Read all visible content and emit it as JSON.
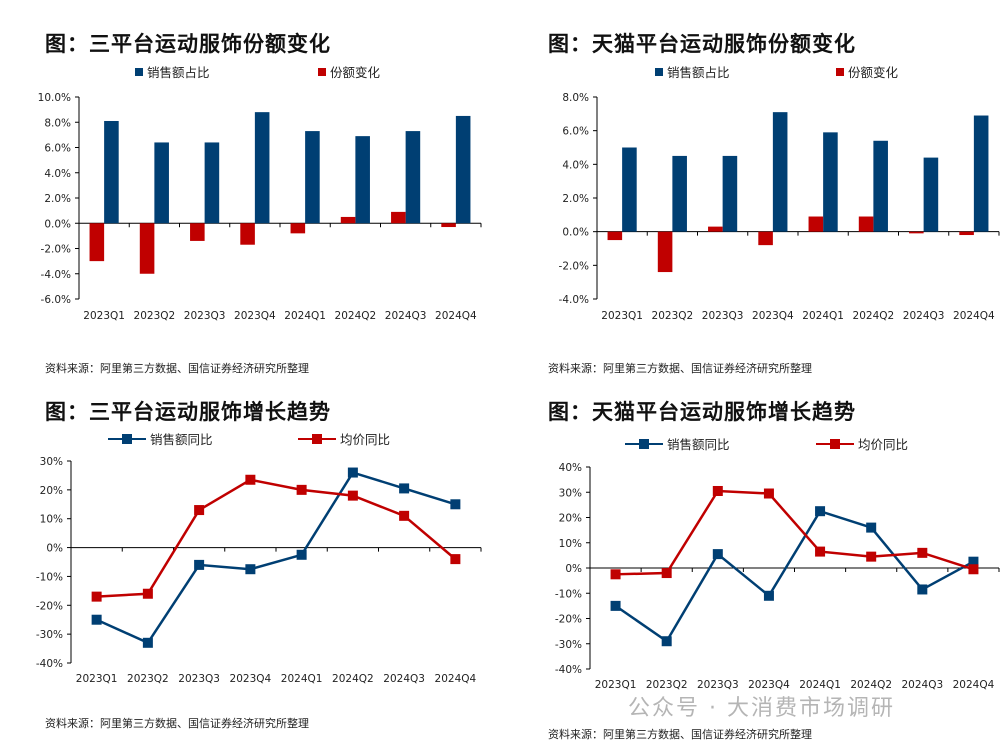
{
  "watermark": "公众号 · 大消费市场调研",
  "colors": {
    "blue": "#003f73",
    "red": "#c00000"
  },
  "chart_data": [
    {
      "type": "bar",
      "title": "图：三平台运动服饰份额变化",
      "categories": [
        "2023Q1",
        "2023Q2",
        "2023Q3",
        "2023Q4",
        "2024Q1",
        "2024Q2",
        "2024Q3",
        "2024Q4"
      ],
      "series": [
        {
          "name": "销售额占比",
          "color": "#003f73",
          "values": [
            8.1,
            6.4,
            6.4,
            8.8,
            7.3,
            6.9,
            7.3,
            8.5
          ]
        },
        {
          "name": "份额变化",
          "color": "#c00000",
          "values": [
            -3.0,
            -4.0,
            -1.4,
            -1.7,
            -0.8,
            0.5,
            0.9,
            -0.3
          ]
        }
      ],
      "ylim": [
        -6,
        10
      ],
      "yticks": [
        "10.0%",
        "8.0%",
        "6.0%",
        "4.0%",
        "2.0%",
        "0.0%",
        "-2.0%",
        "-4.0%",
        "-6.0%"
      ],
      "source": "资料来源：阿里第三方数据、国信证券经济研究所整理"
    },
    {
      "type": "bar",
      "title": "图：天猫平台运动服饰份额变化",
      "categories": [
        "2023Q1",
        "2023Q2",
        "2023Q3",
        "2023Q4",
        "2024Q1",
        "2024Q2",
        "2024Q3",
        "2024Q4"
      ],
      "series": [
        {
          "name": "销售额占比",
          "color": "#003f73",
          "values": [
            5.0,
            4.5,
            4.5,
            7.1,
            5.9,
            5.4,
            4.4,
            6.9
          ]
        },
        {
          "name": "份额变化",
          "color": "#c00000",
          "values": [
            -0.5,
            -2.4,
            0.3,
            -0.8,
            0.9,
            0.9,
            -0.1,
            -0.2
          ]
        }
      ],
      "ylim": [
        -4,
        8
      ],
      "yticks": [
        "8.0%",
        "6.0%",
        "4.0%",
        "2.0%",
        "0.0%",
        "-2.0%",
        "-4.0%"
      ],
      "source": "资料来源：阿里第三方数据、国信证券经济研究所整理"
    },
    {
      "type": "line",
      "title": "图：三平台运动服饰增长趋势",
      "categories": [
        "2023Q1",
        "2023Q2",
        "2023Q3",
        "2023Q4",
        "2024Q1",
        "2024Q2",
        "2024Q3",
        "2024Q4"
      ],
      "series": [
        {
          "name": "销售额同比",
          "color": "#003f73",
          "values": [
            -25,
            -33,
            -6,
            -7.5,
            -2.5,
            26,
            20.5,
            15
          ]
        },
        {
          "name": "均价同比",
          "color": "#c00000",
          "values": [
            -17,
            -16,
            13,
            23.5,
            20,
            18,
            11,
            -4
          ]
        }
      ],
      "ylim": [
        -40,
        30
      ],
      "yticks": [
        "30%",
        "20%",
        "10%",
        "0%",
        "-10%",
        "-20%",
        "-30%",
        "-40%"
      ],
      "source": "资料来源：阿里第三方数据、国信证券经济研究所整理"
    },
    {
      "type": "line",
      "title": "图：天猫平台运动服饰增长趋势",
      "categories": [
        "2023Q1",
        "2023Q2",
        "2023Q3",
        "2023Q4",
        "2024Q1",
        "2024Q2",
        "2024Q3",
        "2024Q4"
      ],
      "series": [
        {
          "name": "销售额同比",
          "color": "#003f73",
          "values": [
            -15,
            -29,
            5.5,
            -11,
            22.5,
            16,
            -8.5,
            2.5
          ]
        },
        {
          "name": "均价同比",
          "color": "#c00000",
          "values": [
            -2.5,
            -2,
            30.5,
            29.5,
            6.5,
            4.5,
            6,
            -0.5
          ]
        }
      ],
      "ylim": [
        -40,
        40
      ],
      "yticks": [
        "40%",
        "30%",
        "20%",
        "10%",
        "0%",
        "-10%",
        "-20%",
        "-30%",
        "-40%"
      ],
      "source": "资料来源：阿里第三方数据、国信证券经济研究所整理"
    }
  ]
}
